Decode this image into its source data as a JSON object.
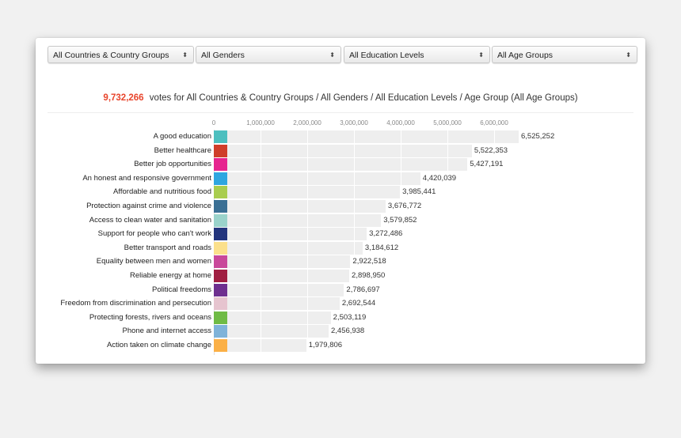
{
  "filters": {
    "country": "All Countries & Country Groups",
    "gender": "All Genders",
    "education": "All Education Levels",
    "age": "All Age Groups",
    "arrow_glyph": "⬍"
  },
  "summary": {
    "total": "9,732,266",
    "text": "votes for All Countries & Country Groups / All Genders / All Education Levels / Age Group (All Age Groups)"
  },
  "colors": {
    "accent": "#e8452c",
    "bar_bg": "#eeeeee"
  },
  "chart_data": {
    "type": "bar",
    "orientation": "horizontal",
    "title": "9,732,266 votes for All Countries & Country Groups / All Genders / All Education Levels / Age Group (All Age Groups)",
    "xlabel": "",
    "ylabel": "",
    "xlim": [
      0,
      6525252
    ],
    "x_ticks": [
      "0",
      "1,000,000",
      "2,000,000",
      "3,000,000",
      "4,000,000",
      "5,000,000",
      "6,000,000"
    ],
    "grid": true,
    "categories": [
      "A good education",
      "Better healthcare",
      "Better job opportunities",
      "An honest and responsive government",
      "Affordable and nutritious food",
      "Protection against crime and violence",
      "Access to clean water and sanitation",
      "Support for people who can't work",
      "Better transport and roads",
      "Equality between men and women",
      "Reliable energy at home",
      "Political freedoms",
      "Freedom from discrimination and persecution",
      "Protecting forests, rivers and oceans",
      "Phone and internet access",
      "Action taken on climate change"
    ],
    "values": [
      6525252,
      5522353,
      5427191,
      4420039,
      3985441,
      3676772,
      3579852,
      3272486,
      3184612,
      2922518,
      2898950,
      2786697,
      2692544,
      2503119,
      2456938,
      1979806
    ],
    "value_labels": [
      "6,525,252",
      "5,522,353",
      "5,427,191",
      "4,420,039",
      "3,985,441",
      "3,676,772",
      "3,579,852",
      "3,272,486",
      "3,184,612",
      "2,922,518",
      "2,898,950",
      "2,786,697",
      "2,692,544",
      "2,503,119",
      "2,456,938",
      "1,979,806"
    ],
    "colors": [
      "#4cbfbf",
      "#cf3e2a",
      "#e6248f",
      "#2fa6e0",
      "#a9cd4e",
      "#3a6f94",
      "#9ad3cb",
      "#23357d",
      "#fbe08c",
      "#c9489a",
      "#a01f42",
      "#6e2f8f",
      "#e6c4cf",
      "#6fbb45",
      "#7fb3d9",
      "#fbb046"
    ]
  }
}
